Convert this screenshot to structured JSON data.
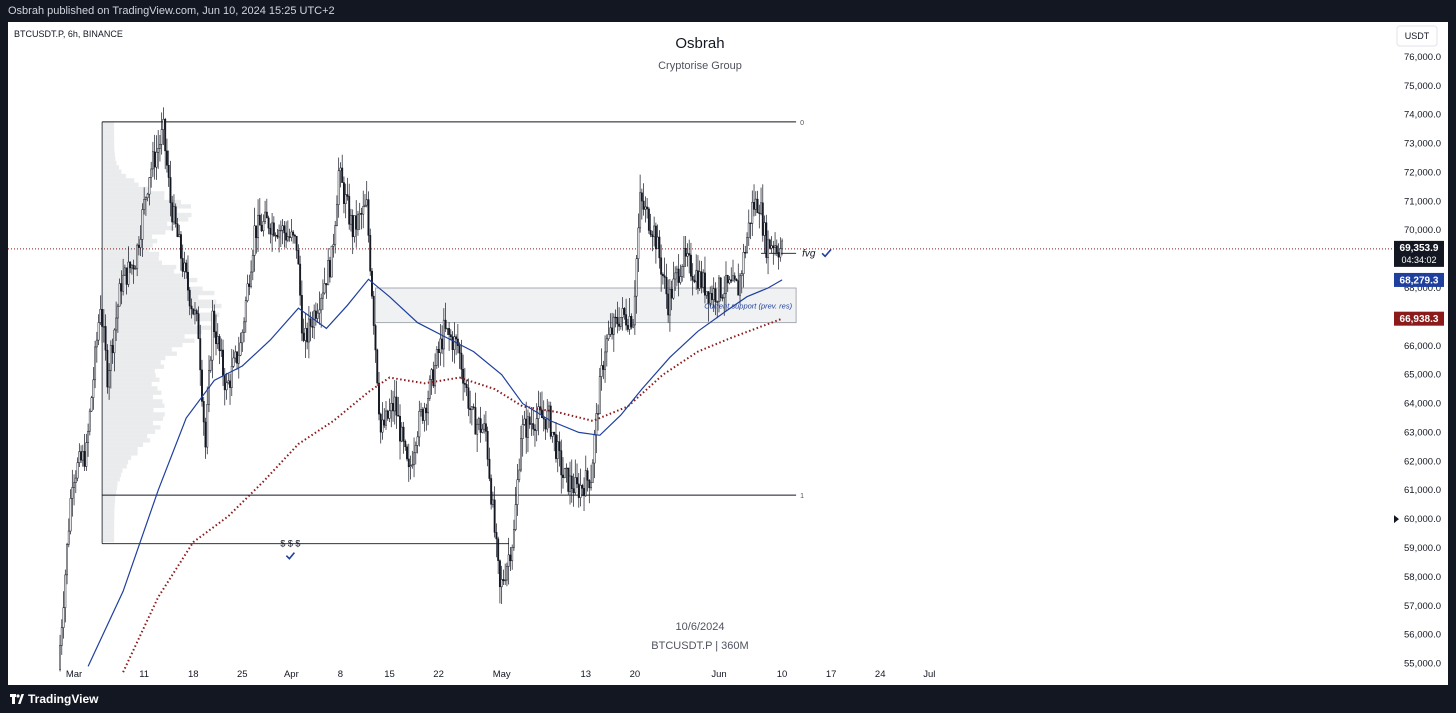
{
  "header": {
    "published_by": "Osbrah published on TradingView.com, Jun 10, 2024 15:25 UTC+2"
  },
  "footer": {
    "brand": "TradingView",
    "logo_icon": "tradingview-logo-icon"
  },
  "chart_data": {
    "type": "candlestick",
    "symbol_line": "BTCUSDT.P, 6h, BINANCE",
    "title": "Osbrah",
    "subtitle": "Cryptorise Group",
    "currency_button": "USDT",
    "watermark": {
      "date": "10/6/2024",
      "symbol": "BTCUSDT.P | 360M"
    },
    "ylim": [
      54500,
      77000
    ],
    "y_ticks": [
      55000,
      56000,
      57000,
      58000,
      59000,
      60000,
      61000,
      62000,
      63000,
      64000,
      65000,
      66000,
      67000,
      68000,
      69000,
      70000,
      71000,
      72000,
      73000,
      74000,
      75000,
      76000
    ],
    "y_tick_labels": [
      "55,000.0",
      "56,000.0",
      "57,000.0",
      "58,000.0",
      "59,000.0",
      "60,000.0",
      "61,000.0",
      "62,000.0",
      "63,000.0",
      "64,000.0",
      "65,000.0",
      "66,000.0",
      "67,000.0",
      "68,000.0",
      "69,000.0",
      "70,000.0",
      "71,000.0",
      "72,000.0",
      "73,000.0",
      "74,000.0",
      "75,000.0",
      "76,000.0"
    ],
    "x_ticks": [
      {
        "date": "2024-03-01",
        "label": "Mar"
      },
      {
        "date": "2024-03-11",
        "label": "11"
      },
      {
        "date": "2024-03-18",
        "label": "18"
      },
      {
        "date": "2024-03-25",
        "label": "25"
      },
      {
        "date": "2024-04-01",
        "label": "Apr"
      },
      {
        "date": "2024-04-08",
        "label": "8"
      },
      {
        "date": "2024-04-15",
        "label": "15"
      },
      {
        "date": "2024-04-22",
        "label": "22"
      },
      {
        "date": "2024-05-01",
        "label": "May"
      },
      {
        "date": "2024-05-13",
        "label": "13"
      },
      {
        "date": "2024-05-20",
        "label": "20"
      },
      {
        "date": "2024-06-01",
        "label": "Jun"
      },
      {
        "date": "2024-06-10",
        "label": "10"
      },
      {
        "date": "2024-06-17",
        "label": "17"
      },
      {
        "date": "2024-06-24",
        "label": "24"
      },
      {
        "date": "2024-07-01",
        "label": "Jul"
      }
    ],
    "price_path": [
      [
        "2024-02-28",
        54800
      ],
      [
        "2024-03-01",
        61500
      ],
      [
        "2024-03-03",
        62300
      ],
      [
        "2024-03-05",
        67500
      ],
      [
        "2024-03-06",
        65000
      ],
      [
        "2024-03-08",
        68200
      ],
      [
        "2024-03-10",
        69000
      ],
      [
        "2024-03-12",
        72000
      ],
      [
        "2024-03-14",
        73400
      ],
      [
        "2024-03-15",
        71000
      ],
      [
        "2024-03-17",
        68500
      ],
      [
        "2024-03-19",
        66500
      ],
      [
        "2024-03-20",
        62500
      ],
      [
        "2024-03-21",
        67000
      ],
      [
        "2024-03-23",
        64500
      ],
      [
        "2024-03-25",
        66000
      ],
      [
        "2024-03-27",
        70000
      ],
      [
        "2024-03-29",
        70300
      ],
      [
        "2024-03-31",
        70000
      ],
      [
        "2024-04-02",
        69500
      ],
      [
        "2024-04-03",
        66000
      ],
      [
        "2024-04-05",
        67500
      ],
      [
        "2024-04-07",
        69000
      ],
      [
        "2024-04-08",
        72000
      ],
      [
        "2024-04-10",
        70000
      ],
      [
        "2024-04-12",
        70800
      ],
      [
        "2024-04-13",
        67000
      ],
      [
        "2024-04-14",
        63000
      ],
      [
        "2024-04-16",
        64000
      ],
      [
        "2024-04-18",
        61500
      ],
      [
        "2024-04-19",
        63000
      ],
      [
        "2024-04-21",
        64500
      ],
      [
        "2024-04-23",
        66500
      ],
      [
        "2024-04-25",
        66000
      ],
      [
        "2024-04-27",
        63500
      ],
      [
        "2024-04-29",
        63000
      ],
      [
        "2024-05-01",
        57500
      ],
      [
        "2024-05-03",
        59500
      ],
      [
        "2024-05-04",
        63000
      ],
      [
        "2024-05-06",
        63500
      ],
      [
        "2024-05-08",
        63500
      ],
      [
        "2024-05-10",
        61500
      ],
      [
        "2024-05-12",
        61000
      ],
      [
        "2024-05-14",
        61500
      ],
      [
        "2024-05-15",
        64000
      ],
      [
        "2024-05-16",
        66000
      ],
      [
        "2024-05-18",
        67000
      ],
      [
        "2024-05-20",
        67000
      ],
      [
        "2024-05-21",
        71000
      ],
      [
        "2024-05-23",
        70000
      ],
      [
        "2024-05-25",
        67500
      ],
      [
        "2024-05-27",
        69000
      ],
      [
        "2024-05-29",
        68500
      ],
      [
        "2024-05-31",
        67800
      ],
      [
        "2024-06-02",
        68000
      ],
      [
        "2024-06-04",
        68000
      ],
      [
        "2024-06-06",
        70800
      ],
      [
        "2024-06-07",
        71000
      ],
      [
        "2024-06-08",
        69500
      ],
      [
        "2024-06-09",
        69600
      ],
      [
        "2024-06-10",
        69354
      ]
    ],
    "ma_blue": {
      "last_value": "68,279.3",
      "color": "#1f3f9e",
      "path": [
        [
          "2024-03-03",
          54900
        ],
        [
          "2024-03-08",
          57500
        ],
        [
          "2024-03-13",
          61000
        ],
        [
          "2024-03-17",
          63500
        ],
        [
          "2024-03-21",
          64800
        ],
        [
          "2024-03-25",
          65300
        ],
        [
          "2024-03-29",
          66200
        ],
        [
          "2024-04-02",
          67300
        ],
        [
          "2024-04-06",
          66600
        ],
        [
          "2024-04-09",
          67400
        ],
        [
          "2024-04-12",
          68300
        ],
        [
          "2024-04-15",
          67700
        ],
        [
          "2024-04-19",
          66800
        ],
        [
          "2024-04-23",
          66300
        ],
        [
          "2024-04-27",
          65800
        ],
        [
          "2024-05-01",
          65000
        ],
        [
          "2024-05-04",
          64000
        ],
        [
          "2024-05-08",
          63400
        ],
        [
          "2024-05-12",
          63000
        ],
        [
          "2024-05-15",
          62900
        ],
        [
          "2024-05-18",
          63600
        ],
        [
          "2024-05-21",
          64500
        ],
        [
          "2024-05-25",
          65600
        ],
        [
          "2024-05-29",
          66500
        ],
        [
          "2024-06-02",
          67200
        ],
        [
          "2024-06-05",
          67700
        ],
        [
          "2024-06-08",
          68000
        ],
        [
          "2024-06-10",
          68279
        ]
      ]
    },
    "ma_red": {
      "last_value": "66,938.3",
      "color": "#8b1a1a",
      "path": [
        [
          "2024-03-08",
          54700
        ],
        [
          "2024-03-13",
          57300
        ],
        [
          "2024-03-18",
          59200
        ],
        [
          "2024-03-23",
          60100
        ],
        [
          "2024-03-28",
          61300
        ],
        [
          "2024-04-02",
          62600
        ],
        [
          "2024-04-07",
          63400
        ],
        [
          "2024-04-12",
          64400
        ],
        [
          "2024-04-15",
          64900
        ],
        [
          "2024-04-20",
          64700
        ],
        [
          "2024-04-25",
          64900
        ],
        [
          "2024-04-30",
          64500
        ],
        [
          "2024-05-04",
          63900
        ],
        [
          "2024-05-09",
          63700
        ],
        [
          "2024-05-14",
          63400
        ],
        [
          "2024-05-19",
          63900
        ],
        [
          "2024-05-24",
          65000
        ],
        [
          "2024-05-29",
          65800
        ],
        [
          "2024-06-03",
          66300
        ],
        [
          "2024-06-10",
          66938
        ]
      ]
    },
    "current_price": {
      "value": 69354,
      "label": "69,353.9",
      "countdown": "04:34:02",
      "line_color": "#8b1a1a"
    },
    "range_lines": [
      {
        "value": 73750,
        "from": "2024-03-05",
        "to": "2024-06-12",
        "label": "0"
      },
      {
        "value": 60830,
        "from": "2024-03-05",
        "to": "2024-06-12",
        "label": "1"
      }
    ],
    "liquidity_line": {
      "value": 59150,
      "from": "2024-03-05",
      "to": "2024-05-02",
      "label": "$ $ $"
    },
    "fvg": {
      "value": 69200,
      "from": "2024-06-07",
      "to": "2024-06-12",
      "label": "fvg"
    },
    "support_zone": {
      "from": "2024-04-13",
      "to": "2024-06-12",
      "top": 68000,
      "bottom": 66800,
      "label": "Current support (prev. res)"
    },
    "right_marker": {
      "value": 60000
    }
  }
}
